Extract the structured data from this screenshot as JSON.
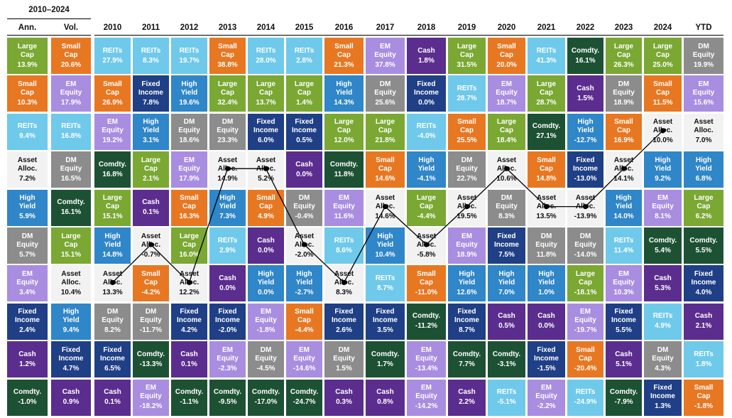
{
  "header": {
    "period": "2010–2024",
    "ann": "Ann.",
    "vol": "Vol.",
    "years": [
      "2010",
      "2011",
      "2012",
      "2013",
      "2014",
      "2015",
      "2016",
      "2017",
      "2018",
      "2019",
      "2020",
      "2021",
      "2022",
      "2023",
      "2024",
      "YTD"
    ]
  },
  "assets": {
    "large-cap": {
      "label": "Large\nCap",
      "bg": "#7aa833",
      "fg": "#ffffff"
    },
    "small-cap": {
      "label": "Small\nCap",
      "bg": "#e87722",
      "fg": "#ffffff"
    },
    "reits": {
      "label": "REITs",
      "bg": "#6fc9ea",
      "fg": "#ffffff"
    },
    "asset-alloc": {
      "label": "Asset\nAlloc.",
      "bg": "#f2f2f2",
      "fg": "#111111"
    },
    "high-yield": {
      "label": "High\nYield",
      "bg": "#2f86c8",
      "fg": "#ffffff"
    },
    "dm-equity": {
      "label": "DM\nEquity",
      "bg": "#8c8c8c",
      "fg": "#ffffff"
    },
    "em-equity": {
      "label": "EM\nEquity",
      "bg": "#a98de0",
      "fg": "#ffffff"
    },
    "fixed-income": {
      "label": "Fixed\nIncome",
      "bg": "#1f3f86",
      "fg": "#ffffff"
    },
    "cash": {
      "label": "Cash",
      "bg": "#5b2d8e",
      "fg": "#ffffff"
    },
    "comdty": {
      "label": "Comdty.",
      "bg": "#1d5134",
      "fg": "#ffffff"
    }
  },
  "chart_data": {
    "type": "table",
    "title": "",
    "columns": [
      "Ann.",
      "Vol.",
      "2010",
      "2011",
      "2012",
      "2013",
      "2014",
      "2015",
      "2016",
      "2017",
      "2018",
      "2019",
      "2020",
      "2021",
      "2022",
      "2023",
      "2024",
      "YTD"
    ],
    "cells": [
      [
        [
          "large-cap",
          "13.9%"
        ],
        [
          "small-cap",
          "20.6%"
        ],
        [
          "reits",
          "27.9%"
        ],
        [
          "reits",
          "8.3%"
        ],
        [
          "reits",
          "19.7%"
        ],
        [
          "small-cap",
          "38.8%"
        ],
        [
          "reits",
          "28.0%"
        ],
        [
          "reits",
          "2.8%"
        ],
        [
          "small-cap",
          "21.3%"
        ],
        [
          "em-equity",
          "37.8%"
        ],
        [
          "cash",
          "1.8%"
        ],
        [
          "large-cap",
          "31.5%"
        ],
        [
          "small-cap",
          "20.0%"
        ],
        [
          "reits",
          "41.3%"
        ],
        [
          "comdty",
          "16.1%"
        ],
        [
          "large-cap",
          "26.3%"
        ],
        [
          "large-cap",
          "25.0%"
        ],
        [
          "dm-equity",
          "19.9%"
        ]
      ],
      [
        [
          "small-cap",
          "10.3%"
        ],
        [
          "em-equity",
          "17.9%"
        ],
        [
          "small-cap",
          "26.9%"
        ],
        [
          "fixed-income",
          "7.8%"
        ],
        [
          "high-yield",
          "19.6%"
        ],
        [
          "large-cap",
          "32.4%"
        ],
        [
          "large-cap",
          "13.7%"
        ],
        [
          "large-cap",
          "1.4%"
        ],
        [
          "high-yield",
          "14.3%"
        ],
        [
          "dm-equity",
          "25.6%"
        ],
        [
          "fixed-income",
          "0.0%"
        ],
        [
          "reits",
          "28.7%"
        ],
        [
          "em-equity",
          "18.7%"
        ],
        [
          "large-cap",
          "28.7%"
        ],
        [
          "cash",
          "1.5%"
        ],
        [
          "dm-equity",
          "18.9%"
        ],
        [
          "small-cap",
          "11.5%"
        ],
        [
          "em-equity",
          "15.6%"
        ]
      ],
      [
        [
          "reits",
          "9.4%"
        ],
        [
          "reits",
          "16.8%"
        ],
        [
          "em-equity",
          "19.2%"
        ],
        [
          "high-yield",
          "3.1%"
        ],
        [
          "dm-equity",
          "18.6%"
        ],
        [
          "dm-equity",
          "23.3%"
        ],
        [
          "fixed-income",
          "6.0%"
        ],
        [
          "fixed-income",
          "0.5%"
        ],
        [
          "large-cap",
          "12.0%"
        ],
        [
          "large-cap",
          "21.8%"
        ],
        [
          "reits",
          "-4.0%"
        ],
        [
          "small-cap",
          "25.5%"
        ],
        [
          "large-cap",
          "18.4%"
        ],
        [
          "comdty",
          "27.1%"
        ],
        [
          "high-yield",
          "-12.7%"
        ],
        [
          "small-cap",
          "16.9%"
        ],
        [
          "asset-alloc",
          "10.0%"
        ],
        [
          "asset-alloc",
          "7.0%"
        ]
      ],
      [
        [
          "asset-alloc",
          "7.2%"
        ],
        [
          "dm-equity",
          "16.5%"
        ],
        [
          "comdty",
          "16.8%"
        ],
        [
          "large-cap",
          "2.1%"
        ],
        [
          "em-equity",
          "17.9%"
        ],
        [
          "asset-alloc",
          "14.9%"
        ],
        [
          "asset-alloc",
          "5.2%"
        ],
        [
          "cash",
          "0.0%"
        ],
        [
          "comdty",
          "11.8%"
        ],
        [
          "small-cap",
          "14.6%"
        ],
        [
          "high-yield",
          "-4.1%"
        ],
        [
          "dm-equity",
          "22.7%"
        ],
        [
          "asset-alloc",
          "10.6%"
        ],
        [
          "small-cap",
          "14.8%"
        ],
        [
          "fixed-income",
          "-13.0%"
        ],
        [
          "asset-alloc",
          "14.1%"
        ],
        [
          "high-yield",
          "9.2%"
        ],
        [
          "high-yield",
          "6.8%"
        ]
      ],
      [
        [
          "high-yield",
          "5.9%"
        ],
        [
          "comdty",
          "16.1%"
        ],
        [
          "large-cap",
          "15.1%"
        ],
        [
          "cash",
          "0.1%"
        ],
        [
          "small-cap",
          "16.3%"
        ],
        [
          "high-yield",
          "7.3%"
        ],
        [
          "small-cap",
          "4.9%"
        ],
        [
          "dm-equity",
          "-0.4%"
        ],
        [
          "em-equity",
          "11.6%"
        ],
        [
          "asset-alloc",
          "14.6%"
        ],
        [
          "large-cap",
          "-4.4%"
        ],
        [
          "asset-alloc",
          "19.5%"
        ],
        [
          "dm-equity",
          "8.3%"
        ],
        [
          "asset-alloc",
          "13.5%"
        ],
        [
          "asset-alloc",
          "-13.9%"
        ],
        [
          "high-yield",
          "14.0%"
        ],
        [
          "em-equity",
          "8.1%"
        ],
        [
          "large-cap",
          "6.2%"
        ]
      ],
      [
        [
          "dm-equity",
          "5.7%"
        ],
        [
          "large-cap",
          "15.1%"
        ],
        [
          "high-yield",
          "14.8%"
        ],
        [
          "asset-alloc",
          "-0.7%"
        ],
        [
          "large-cap",
          "16.0%"
        ],
        [
          "reits",
          "2.9%"
        ],
        [
          "cash",
          "0.0%"
        ],
        [
          "asset-alloc",
          "-2.0%"
        ],
        [
          "reits",
          "8.6%"
        ],
        [
          "high-yield",
          "10.4%"
        ],
        [
          "asset-alloc",
          "-5.8%"
        ],
        [
          "em-equity",
          "18.9%"
        ],
        [
          "fixed-income",
          "7.5%"
        ],
        [
          "dm-equity",
          "11.8%"
        ],
        [
          "dm-equity",
          "-14.0%"
        ],
        [
          "reits",
          "11.4%"
        ],
        [
          "comdty",
          "5.4%"
        ],
        [
          "comdty",
          "5.5%"
        ]
      ],
      [
        [
          "em-equity",
          "3.4%"
        ],
        [
          "asset-alloc",
          "10.4%"
        ],
        [
          "asset-alloc",
          "13.3%"
        ],
        [
          "small-cap",
          "-4.2%"
        ],
        [
          "asset-alloc",
          "12.2%"
        ],
        [
          "cash",
          "0.0%"
        ],
        [
          "high-yield",
          "0.0%"
        ],
        [
          "high-yield",
          "-2.7%"
        ],
        [
          "asset-alloc",
          "8.3%"
        ],
        [
          "reits",
          "8.7%"
        ],
        [
          "small-cap",
          "-11.0%"
        ],
        [
          "high-yield",
          "12.6%"
        ],
        [
          "high-yield",
          "7.0%"
        ],
        [
          "high-yield",
          "1.0%"
        ],
        [
          "large-cap",
          "-18.1%"
        ],
        [
          "em-equity",
          "10.3%"
        ],
        [
          "cash",
          "5.3%"
        ],
        [
          "fixed-income",
          "4.0%"
        ]
      ],
      [
        [
          "fixed-income",
          "2.4%"
        ],
        [
          "high-yield",
          "9.4%"
        ],
        [
          "dm-equity",
          "8.2%"
        ],
        [
          "dm-equity",
          "-11.7%"
        ],
        [
          "fixed-income",
          "4.2%"
        ],
        [
          "fixed-income",
          "-2.0%"
        ],
        [
          "em-equity",
          "-1.8%"
        ],
        [
          "small-cap",
          "-4.4%"
        ],
        [
          "fixed-income",
          "2.6%"
        ],
        [
          "fixed-income",
          "3.5%"
        ],
        [
          "comdty",
          "-11.2%"
        ],
        [
          "fixed-income",
          "8.7%"
        ],
        [
          "cash",
          "0.5%"
        ],
        [
          "cash",
          "0.0%"
        ],
        [
          "em-equity",
          "-19.7%"
        ],
        [
          "fixed-income",
          "5.5%"
        ],
        [
          "reits",
          "4.9%"
        ],
        [
          "cash",
          "2.1%"
        ]
      ],
      [
        [
          "cash",
          "1.2%"
        ],
        [
          "fixed-income",
          "4.7%"
        ],
        [
          "fixed-income",
          "6.5%"
        ],
        [
          "comdty",
          "-13.3%"
        ],
        [
          "cash",
          "0.1%"
        ],
        [
          "em-equity",
          "-2.3%"
        ],
        [
          "dm-equity",
          "-4.5%"
        ],
        [
          "em-equity",
          "-14.6%"
        ],
        [
          "dm-equity",
          "1.5%"
        ],
        [
          "comdty",
          "1.7%"
        ],
        [
          "em-equity",
          "-13.4%"
        ],
        [
          "comdty",
          "7.7%"
        ],
        [
          "comdty",
          "-3.1%"
        ],
        [
          "fixed-income",
          "-1.5%"
        ],
        [
          "small-cap",
          "-20.4%"
        ],
        [
          "cash",
          "5.1%"
        ],
        [
          "dm-equity",
          "4.3%"
        ],
        [
          "reits",
          "1.8%"
        ]
      ],
      [
        [
          "comdty",
          "-1.0%"
        ],
        [
          "cash",
          "0.9%"
        ],
        [
          "cash",
          "0.1%"
        ],
        [
          "em-equity",
          "-18.2%"
        ],
        [
          "comdty",
          "-1.1%"
        ],
        [
          "comdty",
          "-9.5%"
        ],
        [
          "comdty",
          "-17.0%"
        ],
        [
          "comdty",
          "-24.7%"
        ],
        [
          "cash",
          "0.3%"
        ],
        [
          "cash",
          "0.8%"
        ],
        [
          "em-equity",
          "-14.2%"
        ],
        [
          "cash",
          "2.2%"
        ],
        [
          "reits",
          "-5.1%"
        ],
        [
          "em-equity",
          "-2.2%"
        ],
        [
          "reits",
          "-24.9%"
        ],
        [
          "comdty",
          "-7.9%"
        ],
        [
          "fixed-income",
          "1.3%"
        ],
        [
          "small-cap",
          "-1.8%"
        ]
      ]
    ],
    "asset_alloc_path": {
      "years": [
        "2010",
        "2011",
        "2012",
        "2013",
        "2014",
        "2015",
        "2016",
        "2017",
        "2018",
        "2019",
        "2020",
        "2021",
        "2022",
        "2023",
        "2024"
      ],
      "rank": [
        7,
        6,
        7,
        4,
        4,
        6,
        7,
        5,
        6,
        5,
        4,
        5,
        5,
        4,
        3
      ]
    }
  }
}
